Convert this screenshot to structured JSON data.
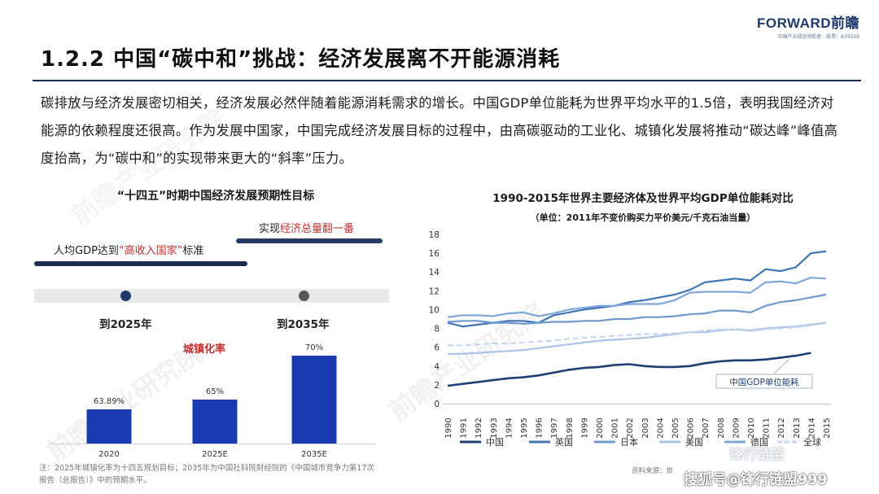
{
  "logo": {
    "brand": "FORWARD前瞻",
    "subtitle": "中国产业规划领航者 · 股票：839599"
  },
  "title": "1.2.2 中国“碳中和”挑战：经济发展离不开能源消耗",
  "intro": "碳排放与经济发展密切相关，经济发展必然伴随着能源消耗需求的增长。中国GDP单位能耗为世界平均水平的1.5倍，表明我国经济对能源的依赖程度还很高。作为发展中国家，中国完成经济发展目标的过程中，由高碳驱动的工业化、城镇化发展将推动“碳达峰”峰值高度抬高，为“碳中和”的实现带来更大的“斜率”压力。",
  "left_panel": {
    "title": "“十四五”时期中国经济发展预期性目标",
    "goal_top": {
      "prefix": "实现",
      "highlight": "经济总量翻一番"
    },
    "goal_bottom": {
      "prefix": "人均GDP达到",
      "highlight": "“高收入国家”",
      "suffix": "标准"
    },
    "milestone_1": "到2025年",
    "milestone_2": "到2035年",
    "urbanization_label": "城镇化率"
  },
  "note": "注：2025年城镇化率为十四五规划目标；2035年为中国社科院财经院的《中国城市竞争力第17次报告（总报告）》中的预期水平。",
  "right_panel": {
    "title": "1990-2015年世界主要经济体及世界平均GDP单位能耗对比",
    "subtitle": "（单位：2011年不变价购买力平价美元/千克石油当量）",
    "annotation": "中国GDP单位能耗"
  },
  "source": "资料来源：世",
  "watermark_social": "锋行链盟",
  "watermark_bottom": "搜狐号@锋行链盟999",
  "colors": {
    "navy": "#1f3a6b",
    "red": "#c0312e",
    "china": "#1f3f73",
    "uk": "#3f74b5",
    "japan": "#6f9bd0",
    "usa": "#a9c4e6",
    "germany": "#7fa7da",
    "world": "#c7d7ed"
  },
  "chart_data": [
    {
      "type": "bar",
      "categories": [
        "2020",
        "2025E",
        "2035E"
      ],
      "values": [
        63.89,
        65,
        70
      ],
      "labels": [
        "63.89%",
        "65%",
        "70%"
      ],
      "title": "城镇化率",
      "ylim": [
        0,
        75
      ]
    },
    {
      "type": "line",
      "title": "1990-2015年世界主要经济体及世界平均GDP单位能耗对比",
      "ylim": [
        0,
        18
      ],
      "yticks": [
        0,
        2,
        4,
        6,
        8,
        10,
        12,
        14,
        16,
        18
      ],
      "x": [
        "1990",
        "1991",
        "1992",
        "1993",
        "1994",
        "1995",
        "1996",
        "1997",
        "1998",
        "1999",
        "2000",
        "2001",
        "2002",
        "2003",
        "2004",
        "2005",
        "2006",
        "2007",
        "2008",
        "2009",
        "2010",
        "2011",
        "2012",
        "2013",
        "2014",
        "2015"
      ],
      "series": [
        {
          "name": "中国",
          "color": "#1f3f73",
          "dash": false,
          "values": [
            1.9,
            2.1,
            2.3,
            2.5,
            2.7,
            2.8,
            3.0,
            3.3,
            3.6,
            3.8,
            3.9,
            4.1,
            4.2,
            4.0,
            3.9,
            3.9,
            4.0,
            4.3,
            4.5,
            4.6,
            4.6,
            4.7,
            4.9,
            5.1,
            5.4,
            null
          ]
        },
        {
          "name": "英国",
          "color": "#3f74b5",
          "dash": false,
          "values": [
            8.6,
            8.2,
            8.4,
            8.6,
            8.8,
            8.8,
            8.6,
            9.4,
            9.7,
            10.0,
            10.2,
            10.4,
            10.8,
            11.0,
            11.3,
            11.6,
            12.1,
            12.9,
            13.1,
            13.3,
            13.1,
            14.3,
            14.1,
            14.5,
            16.0,
            16.2
          ]
        },
        {
          "name": "日本",
          "color": "#6f9bd0",
          "dash": false,
          "values": [
            8.7,
            8.8,
            8.8,
            8.6,
            8.6,
            8.5,
            8.6,
            8.7,
            8.7,
            8.8,
            8.8,
            9.0,
            9.0,
            9.2,
            9.2,
            9.3,
            9.5,
            9.6,
            9.9,
            9.9,
            9.7,
            10.4,
            10.8,
            11.0,
            11.3,
            11.6
          ]
        },
        {
          "name": "美国",
          "color": "#a9c4e6",
          "dash": false,
          "values": [
            5.3,
            5.3,
            5.4,
            5.5,
            5.6,
            5.7,
            5.9,
            6.1,
            6.3,
            6.5,
            6.7,
            6.8,
            6.9,
            7.0,
            7.2,
            7.4,
            7.6,
            7.6,
            7.8,
            7.9,
            7.8,
            8.0,
            8.1,
            8.2,
            8.4,
            8.6
          ]
        },
        {
          "name": "德国",
          "color": "#7fa7da",
          "dash": false,
          "values": [
            9.2,
            9.4,
            9.4,
            9.3,
            9.6,
            9.7,
            9.3,
            9.6,
            10.0,
            10.2,
            10.4,
            10.4,
            10.6,
            10.6,
            10.6,
            11.0,
            11.8,
            11.9,
            11.9,
            11.9,
            11.8,
            12.9,
            13.0,
            12.8,
            13.4,
            13.3
          ]
        },
        {
          "name": "全球",
          "color": "#c7d7ed",
          "dash": true,
          "values": [
            6.2,
            6.2,
            6.3,
            6.4,
            6.4,
            6.5,
            6.6,
            6.7,
            6.9,
            7.0,
            7.1,
            7.2,
            7.3,
            7.4,
            7.4,
            7.5,
            7.6,
            7.8,
            7.9,
            7.9,
            7.7,
            7.9,
            8.0,
            8.1,
            8.3,
            null
          ]
        }
      ],
      "legend": "bottom"
    }
  ]
}
